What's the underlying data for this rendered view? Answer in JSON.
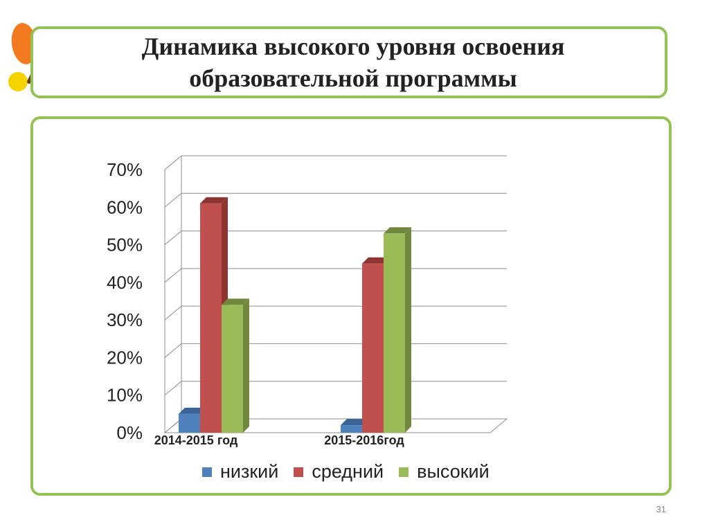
{
  "title": {
    "line1": "Динамика высокого уровня освоения",
    "line2": "образовательной программы"
  },
  "page_number": "31",
  "chart_data": {
    "type": "bar",
    "categories": [
      "2014-2015 год",
      "2015-2016год"
    ],
    "series": [
      {
        "name": "низкий",
        "color": "#4f81bd",
        "values": [
          5,
          2
        ]
      },
      {
        "name": "средний",
        "color": "#c0504d",
        "values": [
          61,
          45
        ]
      },
      {
        "name": "высокий",
        "color": "#9bbb59",
        "values": [
          34,
          53
        ]
      }
    ],
    "ylim": [
      0,
      70
    ],
    "yticks": [
      "0%",
      "10%",
      "20%",
      "30%",
      "40%",
      "50%",
      "60%",
      "70%"
    ],
    "legend_position": "bottom",
    "grid": true
  },
  "colors": {
    "frame": "#92c353",
    "low_side": "#3a6496",
    "mid_side": "#8e3532",
    "high_side": "#71893f"
  }
}
